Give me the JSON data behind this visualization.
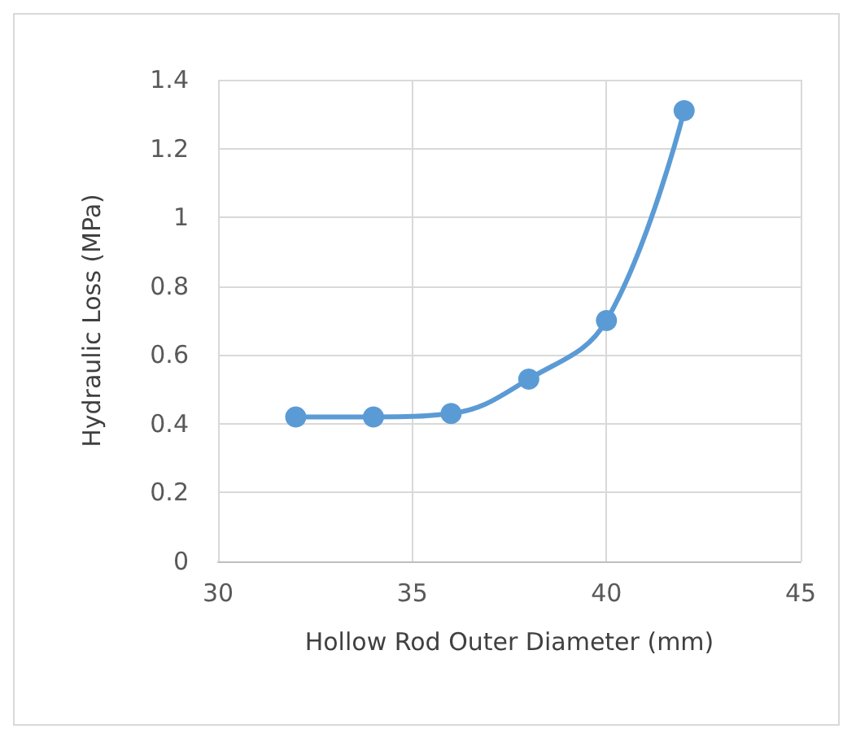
{
  "chart_data": {
    "type": "line",
    "xlabel": "Hollow Rod Outer Diameter (mm)",
    "ylabel": "Hydraulic Loss (MPa)",
    "x": [
      32,
      34,
      36,
      38,
      40,
      42
    ],
    "series": [
      {
        "color": "#5b9bd5",
        "values": [
          0.42,
          0.42,
          0.43,
          0.53,
          0.7,
          1.31
        ]
      }
    ],
    "xlim": [
      30,
      45
    ],
    "xticks": [
      30,
      35,
      40,
      45
    ],
    "ylim": [
      0,
      1.4
    ],
    "yticks": [
      0,
      0.2,
      0.4,
      0.6,
      0.8,
      1,
      1.2,
      1.4
    ],
    "grid": true,
    "marker": "circle",
    "line_style": "solid"
  }
}
